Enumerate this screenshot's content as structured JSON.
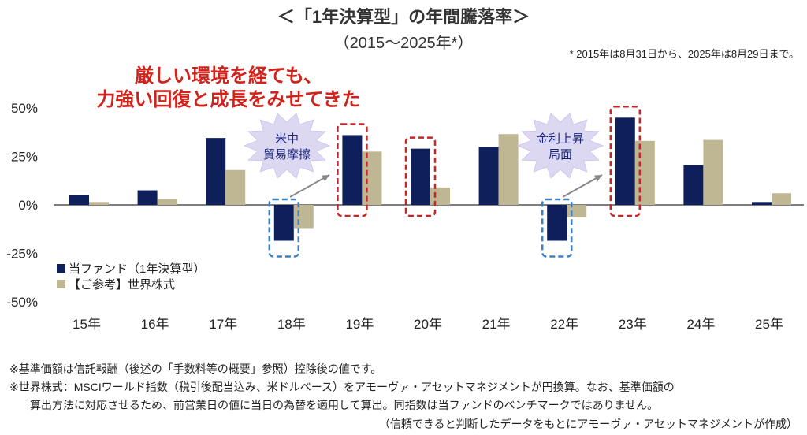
{
  "title": "＜「1年決算型」の年間騰落率＞",
  "subtitle": "（2015～2025年*）",
  "note": "* 2015年は8月31日から、2025年は8月29日まで。",
  "headline": [
    "厳しい環境を経ても、",
    "力強い回復と成長をみせてきた"
  ],
  "callouts": [
    {
      "lines": [
        "米中",
        "貿易摩擦"
      ]
    },
    {
      "lines": [
        "金利上昇",
        "局面"
      ]
    }
  ],
  "footnotes": [
    "※基準価額は信託報酬（後述の「手数料等の概要」参照）控除後の値です。",
    "※世界株式：MSCIワールド指数（税引後配当込み、米ドルベース）をアモーヴァ・アセットマネジメントが円換算。なお、基準価額の",
    "算出方法に対応させるため、前営業日の値に当日の為替を適用して算出。同指数は当ファンドのベンチマークではありません。",
    "（信頼できると判断したデータをもとにアモーヴァ・アセットマネジメントが作成）"
  ],
  "colors": {
    "fund": "#0f1f5c",
    "world": "#bfb793",
    "red": "#c0282b",
    "blue": "#3b82c4"
  },
  "chart_data": {
    "type": "bar",
    "categories": [
      "15年",
      "16年",
      "17年",
      "18年",
      "19年",
      "20年",
      "21年",
      "22年",
      "23年",
      "24年",
      "25年"
    ],
    "series": [
      {
        "name": "当ファンド（1年決算型）",
        "values": [
          5,
          7.5,
          34.5,
          -18.5,
          36,
          29,
          30,
          -18.5,
          45,
          20.5,
          1.5
        ]
      },
      {
        "name": "【ご参考】世界株式",
        "values": [
          1.5,
          3,
          18,
          -12,
          27.5,
          9,
          36.5,
          -6.5,
          33,
          33.5,
          6
        ]
      }
    ],
    "yticks": [
      "50%",
      "25%",
      "0%",
      "-25%",
      "-50%"
    ],
    "ytick_values": [
      50,
      25,
      0,
      -25,
      -50
    ],
    "ylim": [
      -50,
      50
    ],
    "highlight_red": [
      4,
      5,
      8
    ],
    "highlight_blue": [
      3,
      7
    ],
    "legend": "bottom-left"
  }
}
